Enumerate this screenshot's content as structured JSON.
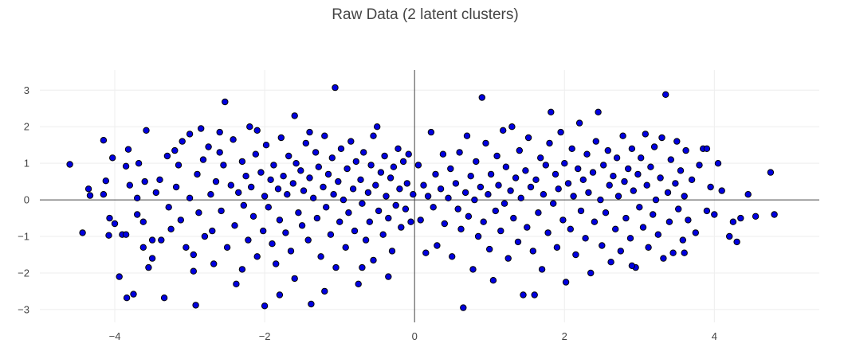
{
  "chart_data": {
    "type": "scatter",
    "title": "Raw Data (2 latent clusters)",
    "xlabel": "",
    "ylabel": "",
    "xlim": [
      -5.0,
      5.4
    ],
    "ylim": [
      -3.35,
      3.55
    ],
    "x_ticks": [
      -4,
      -2,
      0,
      2,
      4
    ],
    "y_ticks": [
      3,
      2,
      1,
      0,
      -1,
      -2,
      -3
    ],
    "x_tick_labels": [
      "−4",
      "−2",
      "0",
      "2",
      "4"
    ],
    "y_tick_labels": [
      "3",
      "2",
      "1",
      "0",
      "−1",
      "−2",
      "−3"
    ],
    "grid": true,
    "zero_lines": true,
    "legend": "none",
    "marker": {
      "fill": "#0000e0",
      "stroke": "#000000"
    },
    "points": [
      [
        -4.6,
        0.97
      ],
      [
        -4.43,
        -0.9
      ],
      [
        -4.35,
        0.3
      ],
      [
        -4.33,
        0.12
      ],
      [
        -4.15,
        1.63
      ],
      [
        -4.15,
        0.15
      ],
      [
        -4.12,
        0.52
      ],
      [
        -4.08,
        -0.97
      ],
      [
        -4.07,
        -0.5
      ],
      [
        -4.03,
        1.15
      ],
      [
        -4.0,
        -0.65
      ],
      [
        -3.94,
        -2.1
      ],
      [
        -3.9,
        -0.95
      ],
      [
        -3.85,
        -0.95
      ],
      [
        -3.85,
        0.92
      ],
      [
        -3.84,
        -2.68
      ],
      [
        -3.82,
        1.38
      ],
      [
        -3.8,
        0.4
      ],
      [
        -3.75,
        -2.58
      ],
      [
        -3.7,
        0.05
      ],
      [
        -3.7,
        -0.4
      ],
      [
        -3.68,
        1.0
      ],
      [
        -3.62,
        -0.6
      ],
      [
        -3.62,
        -1.3
      ],
      [
        -3.6,
        0.5
      ],
      [
        -3.58,
        1.9
      ],
      [
        -3.55,
        -1.85
      ],
      [
        -3.5,
        -1.6
      ],
      [
        -3.45,
        0.2
      ],
      [
        -3.4,
        0.55
      ],
      [
        -3.38,
        -1.1
      ],
      [
        -3.34,
        -2.68
      ],
      [
        -3.3,
        1.2
      ],
      [
        -3.28,
        -0.2
      ],
      [
        -3.25,
        -0.8
      ],
      [
        -3.2,
        1.35
      ],
      [
        -3.18,
        0.35
      ],
      [
        -3.15,
        0.95
      ],
      [
        -3.12,
        -0.55
      ],
      [
        -3.1,
        1.6
      ],
      [
        -3.05,
        -1.3
      ],
      [
        -3.0,
        0.05
      ],
      [
        -2.95,
        -1.5
      ],
      [
        -2.95,
        -1.95
      ],
      [
        -2.92,
        -2.88
      ],
      [
        -2.9,
        0.7
      ],
      [
        -2.88,
        -0.35
      ],
      [
        -2.85,
        1.95
      ],
      [
        -2.82,
        1.1
      ],
      [
        -2.8,
        -1.0
      ],
      [
        -2.75,
        1.45
      ],
      [
        -2.72,
        0.15
      ],
      [
        -2.7,
        -0.85
      ],
      [
        -2.68,
        -1.75
      ],
      [
        -2.65,
        0.5
      ],
      [
        -2.6,
        1.3
      ],
      [
        -2.58,
        -0.3
      ],
      [
        -2.55,
        0.95
      ],
      [
        -2.53,
        2.68
      ],
      [
        -2.5,
        -1.3
      ],
      [
        -2.45,
        0.4
      ],
      [
        -2.42,
        1.65
      ],
      [
        -2.4,
        -0.7
      ],
      [
        -2.38,
        -2.3
      ],
      [
        -2.35,
        0.2
      ],
      [
        -2.3,
        1.05
      ],
      [
        -2.28,
        -0.15
      ],
      [
        -2.25,
        0.65
      ],
      [
        -2.22,
        -1.1
      ],
      [
        -2.2,
        2.0
      ],
      [
        -2.18,
        0.35
      ],
      [
        -2.15,
        -0.45
      ],
      [
        -2.12,
        1.25
      ],
      [
        -2.1,
        -1.55
      ],
      [
        -2.05,
        0.75
      ],
      [
        -2.02,
        -0.85
      ],
      [
        -2.0,
        0.1
      ],
      [
        -1.98,
        1.5
      ],
      [
        -1.95,
        -0.2
      ],
      [
        -1.92,
        0.55
      ],
      [
        -1.9,
        -1.2
      ],
      [
        -1.88,
        0.95
      ],
      [
        -1.85,
        -1.75
      ],
      [
        -1.82,
        0.3
      ],
      [
        -1.8,
        -0.55
      ],
      [
        -1.78,
        1.7
      ],
      [
        -1.75,
        0.65
      ],
      [
        -1.72,
        -0.9
      ],
      [
        -1.7,
        0.15
      ],
      [
        -1.68,
        1.2
      ],
      [
        -1.65,
        -1.4
      ],
      [
        -1.62,
        0.45
      ],
      [
        -1.6,
        -2.15
      ],
      [
        -1.58,
        1.0
      ],
      [
        -1.55,
        -0.35
      ],
      [
        -1.52,
        0.8
      ],
      [
        -1.5,
        -0.7
      ],
      [
        -1.48,
        0.25
      ],
      [
        -1.45,
        1.55
      ],
      [
        -1.42,
        -1.1
      ],
      [
        -1.4,
        0.6
      ],
      [
        -1.38,
        -2.85
      ],
      [
        -1.35,
        0.05
      ],
      [
        -1.32,
        1.3
      ],
      [
        -1.3,
        -0.5
      ],
      [
        -1.28,
        0.9
      ],
      [
        -1.25,
        -1.55
      ],
      [
        -1.22,
        0.35
      ],
      [
        -1.2,
        1.75
      ],
      [
        -1.18,
        -0.2
      ],
      [
        -1.15,
        0.7
      ],
      [
        -1.12,
        -0.95
      ],
      [
        -1.1,
        1.15
      ],
      [
        -1.08,
        0.15
      ],
      [
        -1.06,
        3.07
      ],
      [
        -1.05,
        -1.85
      ],
      [
        -1.02,
        0.5
      ],
      [
        -1.0,
        -0.6
      ],
      [
        -0.98,
        1.4
      ],
      [
        -0.95,
        0.0
      ],
      [
        -0.92,
        -1.3
      ],
      [
        -0.9,
        0.85
      ],
      [
        -0.88,
        -0.35
      ],
      [
        -0.85,
        1.6
      ],
      [
        -0.82,
        0.3
      ],
      [
        -0.8,
        -0.85
      ],
      [
        -0.78,
        1.05
      ],
      [
        -0.75,
        -2.3
      ],
      [
        -0.72,
        0.55
      ],
      [
        -0.7,
        -0.1
      ],
      [
        -0.68,
        1.3
      ],
      [
        -0.65,
        -1.1
      ],
      [
        -0.62,
        0.2
      ],
      [
        -0.6,
        -0.6
      ],
      [
        -0.58,
        0.95
      ],
      [
        -0.55,
        -1.65
      ],
      [
        -0.52,
        0.4
      ],
      [
        -0.5,
        2.0
      ],
      [
        -0.48,
        -0.3
      ],
      [
        -0.45,
        0.75
      ],
      [
        -0.42,
        -0.95
      ],
      [
        -0.4,
        1.2
      ],
      [
        -0.38,
        0.1
      ],
      [
        -0.35,
        -0.5
      ],
      [
        -0.32,
        0.6
      ],
      [
        -0.3,
        -1.4
      ],
      [
        -0.28,
        0.9
      ],
      [
        -0.25,
        -0.15
      ],
      [
        -0.22,
        1.4
      ],
      [
        -0.2,
        0.3
      ],
      [
        -0.18,
        -0.75
      ],
      [
        -0.15,
        1.05
      ],
      [
        -0.12,
        -0.25
      ],
      [
        -0.1,
        0.45
      ],
      [
        -0.08,
        1.25
      ],
      [
        -0.05,
        -0.6
      ],
      [
        -0.02,
        0.15
      ],
      [
        -0.35,
        -2.1
      ],
      [
        -0.55,
        1.75
      ],
      [
        -0.7,
        -1.85
      ],
      [
        -1.6,
        2.3
      ],
      [
        -1.8,
        -2.6
      ],
      [
        -2.1,
        1.9
      ],
      [
        -2.3,
        -1.9
      ],
      [
        -3.0,
        1.8
      ],
      [
        -2.0,
        -2.9
      ],
      [
        -1.2,
        -2.5
      ],
      [
        -3.5,
        -1.1
      ],
      [
        -2.6,
        1.85
      ],
      [
        -1.4,
        1.85
      ],
      [
        0.05,
        0.95
      ],
      [
        0.08,
        -0.55
      ],
      [
        0.12,
        0.4
      ],
      [
        0.15,
        -1.45
      ],
      [
        0.18,
        0.1
      ],
      [
        0.22,
        1.85
      ],
      [
        0.25,
        -0.2
      ],
      [
        0.28,
        0.7
      ],
      [
        0.3,
        -1.25
      ],
      [
        0.35,
        0.3
      ],
      [
        0.38,
        1.25
      ],
      [
        0.4,
        -0.65
      ],
      [
        0.45,
        0.05
      ],
      [
        0.48,
        0.85
      ],
      [
        0.5,
        -1.55
      ],
      [
        0.55,
        0.45
      ],
      [
        0.58,
        -0.25
      ],
      [
        0.6,
        1.3
      ],
      [
        0.62,
        -0.8
      ],
      [
        0.65,
        -2.95
      ],
      [
        0.68,
        0.2
      ],
      [
        0.7,
        1.75
      ],
      [
        0.72,
        -0.45
      ],
      [
        0.75,
        0.65
      ],
      [
        0.78,
        -1.9
      ],
      [
        0.8,
        0.0
      ],
      [
        0.82,
        1.05
      ],
      [
        0.85,
        -1.0
      ],
      [
        0.88,
        0.35
      ],
      [
        0.9,
        2.8
      ],
      [
        0.92,
        -0.6
      ],
      [
        0.95,
        1.55
      ],
      [
        0.98,
        0.15
      ],
      [
        1.0,
        -1.35
      ],
      [
        1.02,
        0.7
      ],
      [
        1.05,
        -2.2
      ],
      [
        1.08,
        -0.3
      ],
      [
        1.1,
        1.2
      ],
      [
        1.12,
        0.4
      ],
      [
        1.15,
        -0.85
      ],
      [
        1.18,
        1.9
      ],
      [
        1.2,
        -0.1
      ],
      [
        1.22,
        0.9
      ],
      [
        1.25,
        -1.6
      ],
      [
        1.28,
        0.25
      ],
      [
        1.3,
        2.0
      ],
      [
        1.32,
        -0.5
      ],
      [
        1.35,
        0.6
      ],
      [
        1.38,
        -1.15
      ],
      [
        1.4,
        1.35
      ],
      [
        1.42,
        0.05
      ],
      [
        1.45,
        -2.6
      ],
      [
        1.48,
        0.8
      ],
      [
        1.5,
        -0.75
      ],
      [
        1.52,
        1.7
      ],
      [
        1.55,
        0.35
      ],
      [
        1.58,
        -1.4
      ],
      [
        1.6,
        -2.6
      ],
      [
        1.62,
        0.55
      ],
      [
        1.65,
        -0.35
      ],
      [
        1.68,
        1.15
      ],
      [
        1.7,
        -1.9
      ],
      [
        1.72,
        0.15
      ],
      [
        1.75,
        0.95
      ],
      [
        1.78,
        -0.9
      ],
      [
        1.8,
        1.55
      ],
      [
        1.82,
        2.4
      ],
      [
        1.85,
        -0.1
      ],
      [
        1.88,
        0.7
      ],
      [
        1.9,
        -1.3
      ],
      [
        1.92,
        0.3
      ],
      [
        1.95,
        1.85
      ],
      [
        1.98,
        -0.55
      ],
      [
        2.0,
        1.0
      ],
      [
        2.02,
        -2.25
      ],
      [
        2.05,
        0.45
      ],
      [
        2.08,
        -0.8
      ],
      [
        2.1,
        1.4
      ],
      [
        2.12,
        0.1
      ],
      [
        2.15,
        -1.5
      ],
      [
        2.18,
        0.85
      ],
      [
        2.2,
        2.1
      ],
      [
        2.22,
        -0.3
      ],
      [
        2.25,
        0.55
      ],
      [
        2.28,
        -1.05
      ],
      [
        2.3,
        1.25
      ],
      [
        2.32,
        0.2
      ],
      [
        2.35,
        -2.0
      ],
      [
        2.38,
        0.75
      ],
      [
        2.4,
        -0.6
      ],
      [
        2.42,
        1.6
      ],
      [
        2.45,
        2.4
      ],
      [
        2.48,
        0.0
      ],
      [
        2.5,
        -1.25
      ],
      [
        2.52,
        0.95
      ],
      [
        2.55,
        -0.35
      ],
      [
        2.58,
        1.35
      ],
      [
        2.6,
        0.4
      ],
      [
        2.62,
        -1.7
      ],
      [
        2.65,
        0.65
      ],
      [
        2.68,
        -0.8
      ],
      [
        2.7,
        1.15
      ],
      [
        2.72,
        0.1
      ],
      [
        2.75,
        -1.4
      ],
      [
        2.78,
        1.75
      ],
      [
        2.8,
        0.5
      ],
      [
        2.82,
        -0.5
      ],
      [
        2.85,
        0.85
      ],
      [
        2.88,
        -1.05
      ],
      [
        2.9,
        1.4
      ],
      [
        2.92,
        0.25
      ],
      [
        2.95,
        -1.85
      ],
      [
        2.98,
        0.7
      ],
      [
        3.0,
        -0.2
      ],
      [
        3.02,
        1.15
      ],
      [
        3.05,
        -0.75
      ],
      [
        3.08,
        1.8
      ],
      [
        3.1,
        0.4
      ],
      [
        3.12,
        -1.3
      ],
      [
        3.15,
        0.9
      ],
      [
        3.18,
        -0.4
      ],
      [
        3.2,
        1.45
      ],
      [
        3.22,
        0.0
      ],
      [
        3.25,
        -0.95
      ],
      [
        3.28,
        0.6
      ],
      [
        3.3,
        1.7
      ],
      [
        3.32,
        -1.6
      ],
      [
        3.35,
        2.88
      ],
      [
        3.38,
        0.2
      ],
      [
        3.4,
        -0.6
      ],
      [
        3.42,
        1.1
      ],
      [
        3.45,
        -1.45
      ],
      [
        3.48,
        0.45
      ],
      [
        3.5,
        1.6
      ],
      [
        3.52,
        -0.25
      ],
      [
        3.55,
        0.8
      ],
      [
        3.58,
        -1.1
      ],
      [
        3.6,
        0.1
      ],
      [
        3.62,
        1.35
      ],
      [
        3.65,
        -0.55
      ],
      [
        3.7,
        0.55
      ],
      [
        3.75,
        -0.9
      ],
      [
        3.8,
        0.95
      ],
      [
        3.85,
        1.4
      ],
      [
        3.9,
        -0.3
      ],
      [
        3.95,
        0.35
      ],
      [
        4.0,
        -0.4
      ],
      [
        4.05,
        1.0
      ],
      [
        4.1,
        0.25
      ],
      [
        4.2,
        -1.0
      ],
      [
        4.25,
        -0.6
      ],
      [
        4.3,
        -1.15
      ],
      [
        4.35,
        -0.5
      ],
      [
        4.45,
        0.15
      ],
      [
        4.55,
        -0.45
      ],
      [
        4.75,
        0.75
      ],
      [
        4.8,
        -0.4
      ],
      [
        3.9,
        1.4
      ],
      [
        3.6,
        -1.45
      ],
      [
        2.9,
        -1.8
      ]
    ]
  }
}
